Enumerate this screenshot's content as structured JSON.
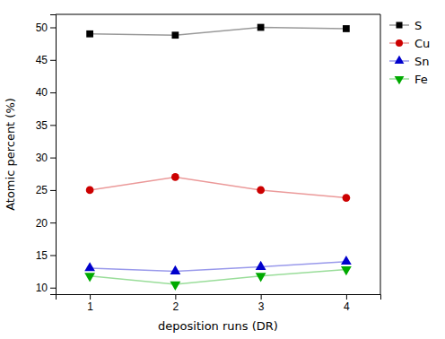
{
  "chart_data": {
    "type": "line",
    "xlabel": "deposition runs (DR)",
    "ylabel": "Atomic percent (%)",
    "x": [
      1,
      2,
      3,
      4
    ],
    "series": [
      {
        "name": "S",
        "color": "#000000",
        "marker": "square",
        "values": [
          49.0,
          48.8,
          50.0,
          49.8
        ]
      },
      {
        "name": "Cu",
        "color": "#cc0000",
        "marker": "circle",
        "values": [
          25.0,
          27.0,
          25.0,
          23.8
        ]
      },
      {
        "name": "Sn",
        "color": "#0000cc",
        "marker": "triangle-up",
        "values": [
          13.0,
          12.5,
          13.2,
          14.0
        ]
      },
      {
        "name": "Fe",
        "color": "#00aa00",
        "marker": "triangle-down",
        "values": [
          11.8,
          10.5,
          11.8,
          12.8
        ]
      }
    ],
    "xlim": [
      0.6,
      4.4
    ],
    "ylim": [
      9,
      52
    ],
    "xticks": [
      1,
      2,
      3,
      4
    ],
    "yticks": [
      10,
      15,
      20,
      25,
      30,
      35,
      40,
      45,
      50
    ],
    "legend": "upper right",
    "grid": false
  }
}
